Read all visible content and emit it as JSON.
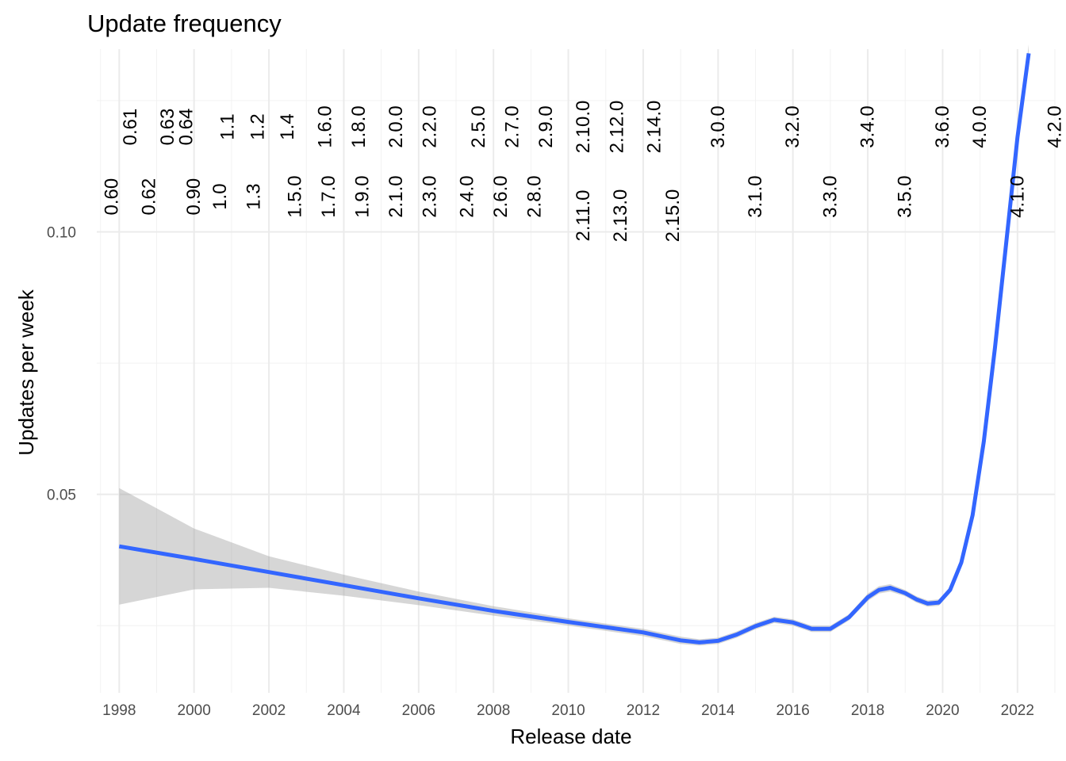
{
  "chart_data": {
    "type": "line",
    "title": "Update frequency",
    "xlabel": "Release date",
    "ylabel": "Updates per week",
    "xlim": [
      1997.4,
      2023.0
    ],
    "ylim": [
      0.0122,
      0.1348
    ],
    "x_ticks": [
      1998,
      2000,
      2002,
      2004,
      2006,
      2008,
      2010,
      2012,
      2014,
      2016,
      2018,
      2020,
      2022
    ],
    "x_tick_labels": [
      "1998",
      "2000",
      "2002",
      "2004",
      "2006",
      "2008",
      "2010",
      "2012",
      "2014",
      "2016",
      "2018",
      "2020",
      "2022"
    ],
    "y_ticks": [
      0.05,
      0.1
    ],
    "y_tick_labels": [
      "0.05",
      "0.10"
    ],
    "y_minor_ticks": [
      0.025,
      0.075,
      0.125
    ],
    "grid": true,
    "series": [
      {
        "color": "#3366ff",
        "x": [
          1998.0,
          2000.0,
          2002.0,
          2004.0,
          2006.0,
          2008.0,
          2010.0,
          2012.0,
          2013.0,
          2013.5,
          2014.0,
          2014.5,
          2015.0,
          2015.5,
          2016.0,
          2016.5,
          2017.0,
          2017.5,
          2018.0,
          2018.3,
          2018.6,
          2019.0,
          2019.3,
          2019.6,
          2019.9,
          2020.2,
          2020.5,
          2020.8,
          2021.1,
          2021.4,
          2021.7,
          2022.0,
          2022.3
        ],
        "y": [
          0.0401,
          0.0377,
          0.0352,
          0.0327,
          0.0302,
          0.0278,
          0.0257,
          0.0237,
          0.0222,
          0.0218,
          0.0221,
          0.0233,
          0.0249,
          0.0261,
          0.0256,
          0.0244,
          0.0244,
          0.0266,
          0.0304,
          0.0318,
          0.0322,
          0.0312,
          0.03,
          0.0292,
          0.0294,
          0.0318,
          0.037,
          0.046,
          0.06,
          0.078,
          0.098,
          0.118,
          0.134
        ]
      }
    ],
    "confidence_band": {
      "color": "#999999",
      "opacity": 0.4,
      "x": [
        1998.0,
        2000.0,
        2002.0,
        2004.0,
        2006.0,
        2008.0,
        2010.0,
        2012.0,
        2013.0,
        2013.5,
        2014.0,
        2014.5,
        2015.0,
        2015.5,
        2016.0,
        2016.5,
        2017.0,
        2017.5,
        2018.0,
        2018.3,
        2018.6,
        2019.0,
        2019.3,
        2019.6,
        2019.9,
        2020.2,
        2020.5,
        2020.8,
        2021.1,
        2021.4,
        2021.7,
        2022.0,
        2022.3
      ],
      "upper": [
        0.0512,
        0.0435,
        0.0382,
        0.0347,
        0.0315,
        0.0287,
        0.0264,
        0.0244,
        0.0229,
        0.0224,
        0.0227,
        0.0239,
        0.0255,
        0.0267,
        0.0262,
        0.025,
        0.025,
        0.0272,
        0.0311,
        0.0325,
        0.0329,
        0.0318,
        0.0306,
        0.0298,
        0.03,
        0.0324,
        0.0376,
        0.0466,
        0.0606,
        0.0786,
        0.0988,
        0.119,
        0.1357
      ],
      "lower": [
        0.029,
        0.0319,
        0.0322,
        0.0307,
        0.0289,
        0.0269,
        0.025,
        0.023,
        0.0215,
        0.0212,
        0.0215,
        0.0227,
        0.0243,
        0.0255,
        0.025,
        0.0238,
        0.0238,
        0.026,
        0.0297,
        0.0311,
        0.0315,
        0.0306,
        0.0294,
        0.0286,
        0.0288,
        0.0312,
        0.0364,
        0.0454,
        0.0594,
        0.0774,
        0.0972,
        0.117,
        0.1323
      ]
    },
    "annotations": [
      {
        "x": 1997.8,
        "y": 0.1067,
        "label": "0.60"
      },
      {
        "x": 1998.3,
        "y": 0.12,
        "label": "0.61"
      },
      {
        "x": 1998.8,
        "y": 0.1067,
        "label": "0.62"
      },
      {
        "x": 1999.3,
        "y": 0.12,
        "label": "0.63"
      },
      {
        "x": 1999.8,
        "y": 0.12,
        "label": "0.64"
      },
      {
        "x": 2000.0,
        "y": 0.1067,
        "label": "0.90"
      },
      {
        "x": 2000.7,
        "y": 0.1067,
        "label": "1.0"
      },
      {
        "x": 2000.9,
        "y": 0.12,
        "label": "1.1"
      },
      {
        "x": 2001.6,
        "y": 0.1067,
        "label": "1.3"
      },
      {
        "x": 2001.7,
        "y": 0.12,
        "label": "1.2"
      },
      {
        "x": 2002.7,
        "y": 0.1067,
        "label": "1.5.0"
      },
      {
        "x": 2002.5,
        "y": 0.12,
        "label": "1.4"
      },
      {
        "x": 2003.6,
        "y": 0.1067,
        "label": "1.7.0"
      },
      {
        "x": 2003.5,
        "y": 0.12,
        "label": "1.6.0"
      },
      {
        "x": 2004.5,
        "y": 0.1067,
        "label": "1.9.0"
      },
      {
        "x": 2004.4,
        "y": 0.12,
        "label": "1.8.0"
      },
      {
        "x": 2005.4,
        "y": 0.1067,
        "label": "2.1.0"
      },
      {
        "x": 2005.4,
        "y": 0.12,
        "label": "2.0.0"
      },
      {
        "x": 2006.3,
        "y": 0.1067,
        "label": "2.3.0"
      },
      {
        "x": 2006.3,
        "y": 0.12,
        "label": "2.2.0"
      },
      {
        "x": 2007.3,
        "y": 0.1067,
        "label": "2.4.0"
      },
      {
        "x": 2007.6,
        "y": 0.12,
        "label": "2.5.0"
      },
      {
        "x": 2008.2,
        "y": 0.1067,
        "label": "2.6.0"
      },
      {
        "x": 2008.5,
        "y": 0.12,
        "label": "2.7.0"
      },
      {
        "x": 2009.1,
        "y": 0.1067,
        "label": "2.8.0"
      },
      {
        "x": 2009.4,
        "y": 0.12,
        "label": "2.9.0"
      },
      {
        "x": 2010.4,
        "y": 0.1031,
        "label": "2.11.0"
      },
      {
        "x": 2010.4,
        "y": 0.12,
        "label": "2.10.0"
      },
      {
        "x": 2011.4,
        "y": 0.1031,
        "label": "2.13.0"
      },
      {
        "x": 2011.3,
        "y": 0.12,
        "label": "2.12.0"
      },
      {
        "x": 2012.8,
        "y": 0.1031,
        "label": "2.15.0"
      },
      {
        "x": 2012.3,
        "y": 0.12,
        "label": "2.14.0"
      },
      {
        "x": 2014.0,
        "y": 0.12,
        "label": "3.0.0"
      },
      {
        "x": 2015.0,
        "y": 0.1067,
        "label": "3.1.0"
      },
      {
        "x": 2016.0,
        "y": 0.12,
        "label": "3.2.0"
      },
      {
        "x": 2017.0,
        "y": 0.1067,
        "label": "3.3.0"
      },
      {
        "x": 2018.0,
        "y": 0.12,
        "label": "3.4.0"
      },
      {
        "x": 2019.0,
        "y": 0.1067,
        "label": "3.5.0"
      },
      {
        "x": 2020.0,
        "y": 0.12,
        "label": "3.6.0"
      },
      {
        "x": 2021.0,
        "y": 0.12,
        "label": "4.0.0"
      },
      {
        "x": 2022.0,
        "y": 0.1067,
        "label": "4.1.0"
      },
      {
        "x": 2023.0,
        "y": 0.12,
        "label": "4.2.0"
      }
    ]
  }
}
